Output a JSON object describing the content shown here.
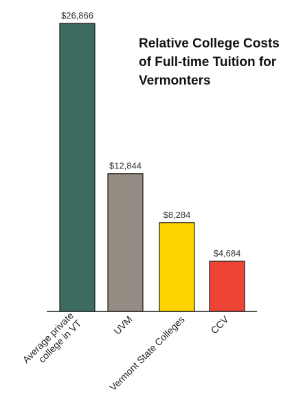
{
  "chart_data": {
    "type": "bar",
    "title_lines": [
      "Relative College Costs",
      "of Full-time Tuition for",
      "Vermonters"
    ],
    "categories": [
      "Average private college in VT",
      "UVM",
      "Vermont State Colleges",
      "CCV"
    ],
    "category_label_lines": [
      [
        "Average private",
        "college in VT"
      ],
      [
        "UVM"
      ],
      [
        "Vermont State  Colleges"
      ],
      [
        "CCV"
      ]
    ],
    "values": [
      26866,
      12844,
      8284,
      4684
    ],
    "value_labels": [
      "$26,866",
      "$12,844",
      "$8,284",
      "$4,684"
    ],
    "colors": [
      "#3e6b61",
      "#948b83",
      "#ffd500",
      "#ee4436"
    ],
    "ylim": [
      0,
      26866
    ],
    "grid": false,
    "legend": false
  }
}
